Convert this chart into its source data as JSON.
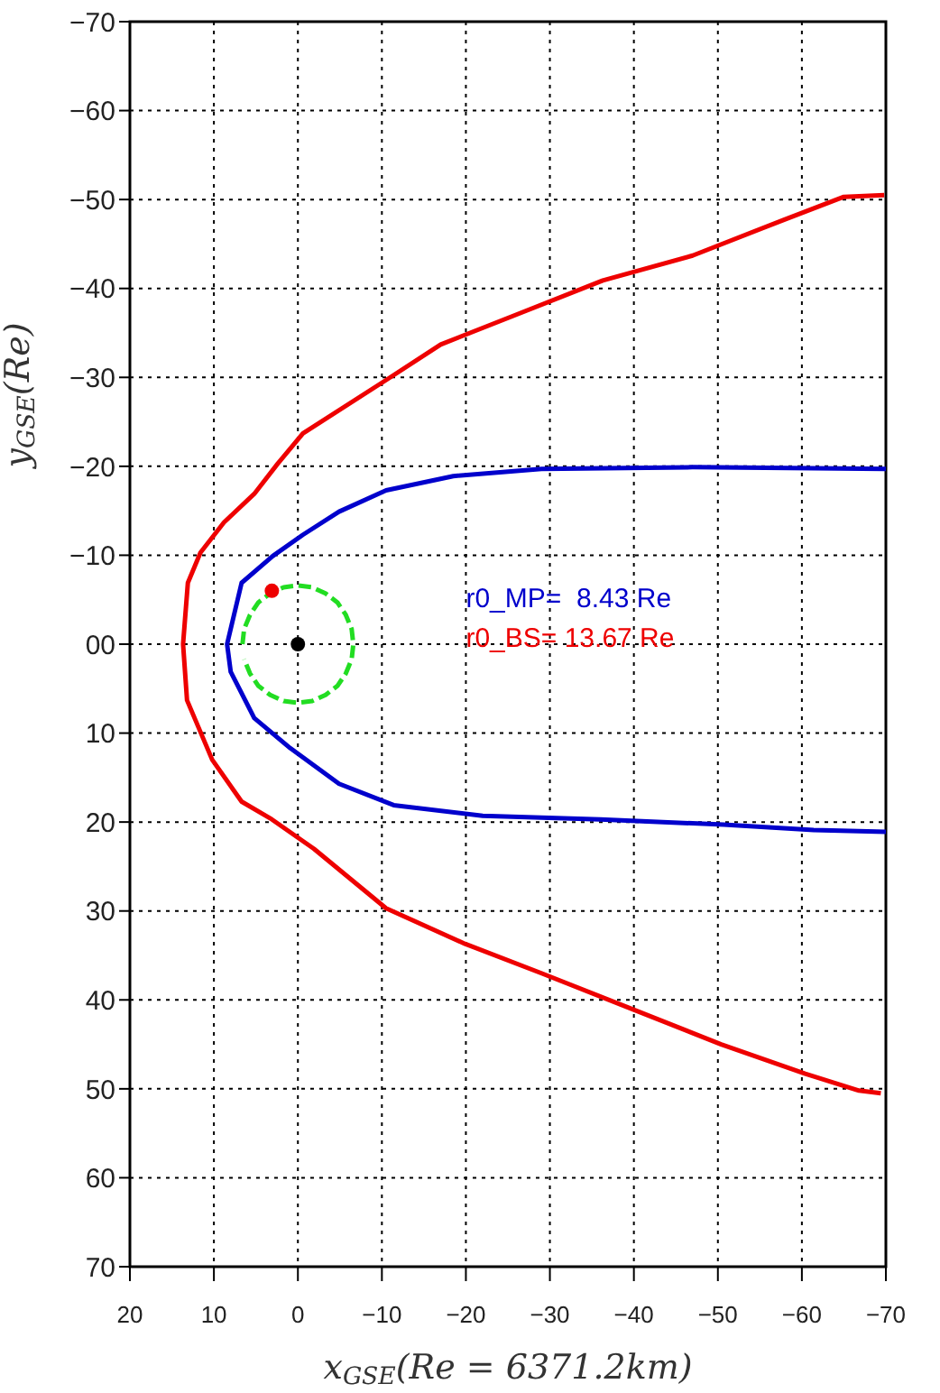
{
  "chart_data": {
    "type": "line",
    "xlabel": "x$_{GSE}$(Re = 6371.2km)",
    "ylabel": "y$_{GSE}$(Re)",
    "xlim": [
      20,
      -70
    ],
    "xticks": [
      20,
      10,
      0,
      -10,
      -20,
      -30,
      -40,
      -50,
      -60,
      -70
    ],
    "ylim": [
      70,
      -70
    ],
    "yticks": [
      -70,
      -60,
      -50,
      -40,
      -30,
      -20,
      -10,
      {
        "value": 0,
        "label": "00"
      },
      10,
      20,
      30,
      40,
      50,
      60,
      70
    ],
    "grid": true,
    "line_style": "solid",
    "marker": "none",
    "series": [
      {
        "color": "#0000cc",
        "x": [
          -70,
          -61.4,
          -50.7,
          -36,
          -22,
          -11.4,
          -4.9,
          0.9,
          5.2,
          8,
          8.43,
          6.7,
          3,
          -0.6,
          -4.9,
          -10.5,
          -18.5,
          -29,
          -47,
          -70
        ],
        "values": [
          21.1,
          20.9,
          20.3,
          19.7,
          19.3,
          18.1,
          15.7,
          11.7,
          8.3,
          3.1,
          0,
          -6.9,
          -9.9,
          -12.3,
          -14.9,
          -17.3,
          -18.9,
          -19.7,
          -19.9,
          -19.7
        ]
      },
      {
        "color": "#ee0000",
        "x": [
          -69.4,
          -66.8,
          -60.4,
          -50.4,
          -39.7,
          -29,
          -19.9,
          -10.5,
          -1.9,
          3.1,
          6.7,
          10.2,
          13.2,
          13.67,
          13.1,
          11.6,
          8.8,
          5.2,
          2.4,
          -0.6,
          -10.5,
          -17,
          -25.6,
          -36.3,
          -47,
          -57.8,
          -65,
          -69.8
        ],
        "values": [
          50.5,
          50.2,
          48.3,
          45,
          41,
          37,
          33.7,
          29.7,
          23,
          19.7,
          17.7,
          13,
          6.3,
          0,
          -6.9,
          -10.3,
          -13.7,
          -16.9,
          -20.3,
          -23.7,
          -29.7,
          -33.7,
          -36.9,
          -40.9,
          -43.7,
          -47.7,
          -50.3,
          -50.5
        ]
      },
      {
        "color": "#22dd22",
        "line_style": "dashed",
        "x": [
          6.6,
          6.4,
          5.7,
          4.7,
          3.3,
          1.7,
          0,
          -1.7,
          -3.3,
          -4.7,
          -5.7,
          -6.4,
          -6.6,
          -6.4,
          -5.7,
          -4.7,
          -3.3,
          -1.7,
          0,
          1.7,
          3.3,
          4.7,
          5.7,
          6.4
        ],
        "values": [
          0,
          -1.7,
          -3.3,
          -4.7,
          -5.7,
          -6.4,
          -6.6,
          -6.4,
          -5.7,
          -4.7,
          -3.3,
          -1.7,
          0,
          1.7,
          3.3,
          4.7,
          5.7,
          6.4,
          6.6,
          6.4,
          5.7,
          4.7,
          3.3,
          1.7
        ]
      },
      {
        "type": "scatter",
        "marker": "circle",
        "color": "#ee0000",
        "x": [
          3.1
        ],
        "values": [
          -6
        ]
      },
      {
        "type": "scatter",
        "marker": "circle",
        "color": "#000000",
        "x": [
          0
        ],
        "values": [
          0
        ]
      }
    ],
    "annotations": [
      "r0_MP=  8.43 Re",
      "r0_BS= 13.67 Re"
    ]
  }
}
